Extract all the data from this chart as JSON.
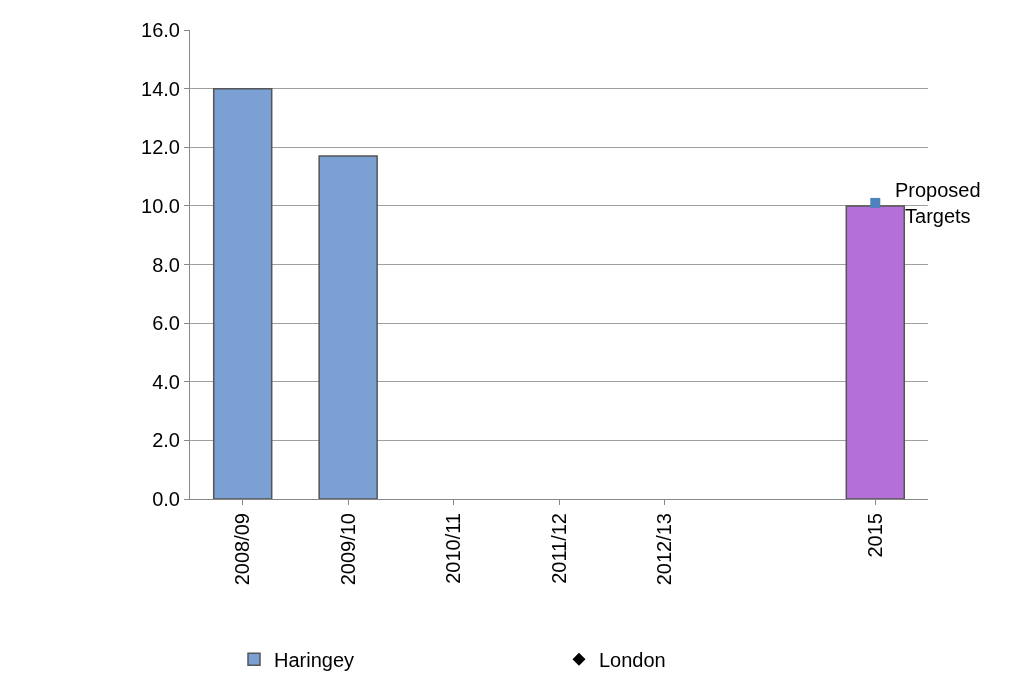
{
  "chart_data": {
    "type": "bar",
    "categories": [
      "2008/09",
      "2009/10",
      "2010/11",
      "2011/12",
      "2012/13",
      null,
      "2015"
    ],
    "series": [
      {
        "name": "Haringey",
        "color": "#7ba0d4",
        "colors": [
          null,
          null,
          null,
          null,
          null,
          null,
          "#b46fd8"
        ],
        "values": [
          14.0,
          11.7,
          null,
          null,
          null,
          null,
          10.0
        ]
      },
      {
        "name": "London",
        "type": "scatter",
        "color": "#000000",
        "marker": "diamond",
        "values": [
          null,
          null,
          null,
          null,
          null,
          null,
          null
        ]
      },
      {
        "type": "scatter",
        "color": "#4f81bd",
        "marker": "square",
        "values": [
          null,
          null,
          null,
          null,
          null,
          null,
          10.1
        ]
      }
    ],
    "annotations": [
      {
        "text": "Proposed Targets",
        "x": "2015",
        "y": 10.1
      }
    ],
    "ylim": [
      0,
      16
    ],
    "yticks": [
      {
        "value": 0,
        "label": "0.0"
      },
      {
        "value": 2,
        "label": "2.0"
      },
      {
        "value": 4,
        "label": "4.0"
      },
      {
        "value": 6,
        "label": "6.0"
      },
      {
        "value": 8,
        "label": "8.0"
      },
      {
        "value": 10,
        "label": "10.0"
      },
      {
        "value": 12,
        "label": "12.0"
      },
      {
        "value": 14,
        "label": "14.0"
      },
      {
        "value": 16,
        "label": "16.0"
      }
    ],
    "grid": "y",
    "legend": "bottom"
  }
}
